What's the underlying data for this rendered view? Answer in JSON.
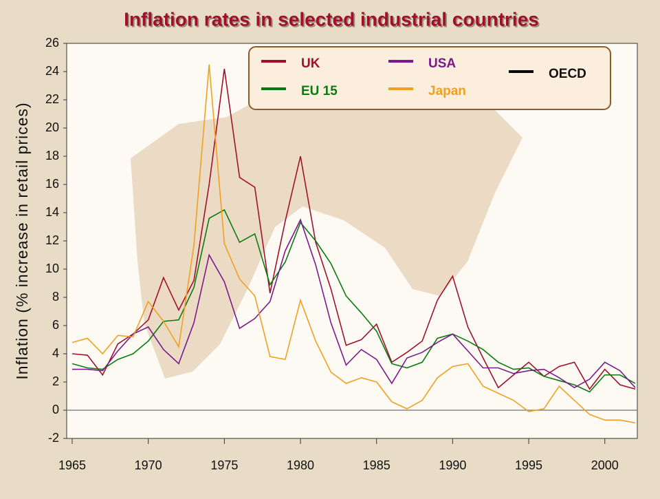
{
  "chart_data": {
    "type": "line",
    "title": "Inflation rates in selected industrial countries",
    "ylabel": "Inflation (% increase in retail prices)",
    "x": [
      1965,
      1966,
      1967,
      1968,
      1969,
      1970,
      1971,
      1972,
      1973,
      1974,
      1975,
      1976,
      1977,
      1978,
      1979,
      1980,
      1981,
      1982,
      1983,
      1984,
      1985,
      1986,
      1987,
      1988,
      1989,
      1990,
      1991,
      1992,
      1993,
      1994,
      1995,
      1996,
      1997,
      1998,
      1999,
      2000,
      2001,
      2002
    ],
    "xlim": [
      1965,
      2002
    ],
    "xticks": [
      1965,
      1970,
      1975,
      1980,
      1985,
      1990,
      1995,
      2000
    ],
    "ylim": [
      -2,
      26
    ],
    "yticks": [
      -2,
      0,
      2,
      4,
      6,
      8,
      10,
      12,
      14,
      16,
      18,
      20,
      22,
      24,
      26
    ],
    "series": [
      {
        "name": "UK",
        "color": "#a0102a",
        "values": [
          4.0,
          3.9,
          2.5,
          4.7,
          5.4,
          6.4,
          9.4,
          7.1,
          9.2,
          16.0,
          24.2,
          16.5,
          15.8,
          8.3,
          13.4,
          18.0,
          11.9,
          8.6,
          4.6,
          5.0,
          6.1,
          3.4,
          4.1,
          4.9,
          7.8,
          9.5,
          5.9,
          3.7,
          1.6,
          2.5,
          3.4,
          2.4,
          3.1,
          3.4,
          1.5,
          2.9,
          1.8,
          1.5
        ]
      },
      {
        "name": "EU 15",
        "color": "#0a7a10",
        "values": [
          3.3,
          3.0,
          2.9,
          3.6,
          4.0,
          4.9,
          6.3,
          6.4,
          8.7,
          13.6,
          14.2,
          11.9,
          12.5,
          8.9,
          10.5,
          13.3,
          12.0,
          10.4,
          8.1,
          6.9,
          5.6,
          3.3,
          3.0,
          3.4,
          5.1,
          5.4,
          4.9,
          4.3,
          3.4,
          2.9,
          3.0,
          2.4,
          2.1,
          1.8,
          1.3,
          2.5,
          2.5,
          1.9
        ]
      },
      {
        "name": "USA",
        "color": "#7a1a8a",
        "values": [
          2.9,
          2.9,
          2.8,
          4.2,
          5.4,
          5.9,
          4.3,
          3.3,
          6.2,
          11.0,
          9.1,
          5.8,
          6.5,
          7.7,
          11.3,
          13.5,
          10.3,
          6.2,
          3.2,
          4.3,
          3.6,
          1.9,
          3.7,
          4.1,
          4.8,
          5.4,
          4.2,
          3.0,
          3.0,
          2.6,
          2.8,
          2.9,
          2.3,
          1.6,
          2.2,
          3.4,
          2.8,
          1.6
        ]
      },
      {
        "name": "Japan",
        "color": "#f0a020",
        "values": [
          4.8,
          5.1,
          4.0,
          5.3,
          5.2,
          7.7,
          6.3,
          4.5,
          11.7,
          24.5,
          11.8,
          9.3,
          8.1,
          3.8,
          3.6,
          7.8,
          4.9,
          2.7,
          1.9,
          2.3,
          2.0,
          0.6,
          0.1,
          0.7,
          2.3,
          3.1,
          3.3,
          1.7,
          1.2,
          0.7,
          -0.1,
          0.1,
          1.7,
          0.7,
          -0.3,
          -0.7,
          -0.7,
          -0.9
        ]
      },
      {
        "name": "OECD",
        "color": "#000000",
        "values": [
          null,
          null,
          null,
          null,
          null,
          null,
          null,
          null,
          null,
          null,
          null,
          null,
          null,
          null,
          null,
          null,
          null,
          null,
          null,
          null,
          null,
          null,
          null,
          null,
          null,
          null,
          null,
          null,
          null,
          null,
          null,
          null,
          null,
          null,
          null,
          null,
          null,
          null
        ]
      }
    ]
  }
}
